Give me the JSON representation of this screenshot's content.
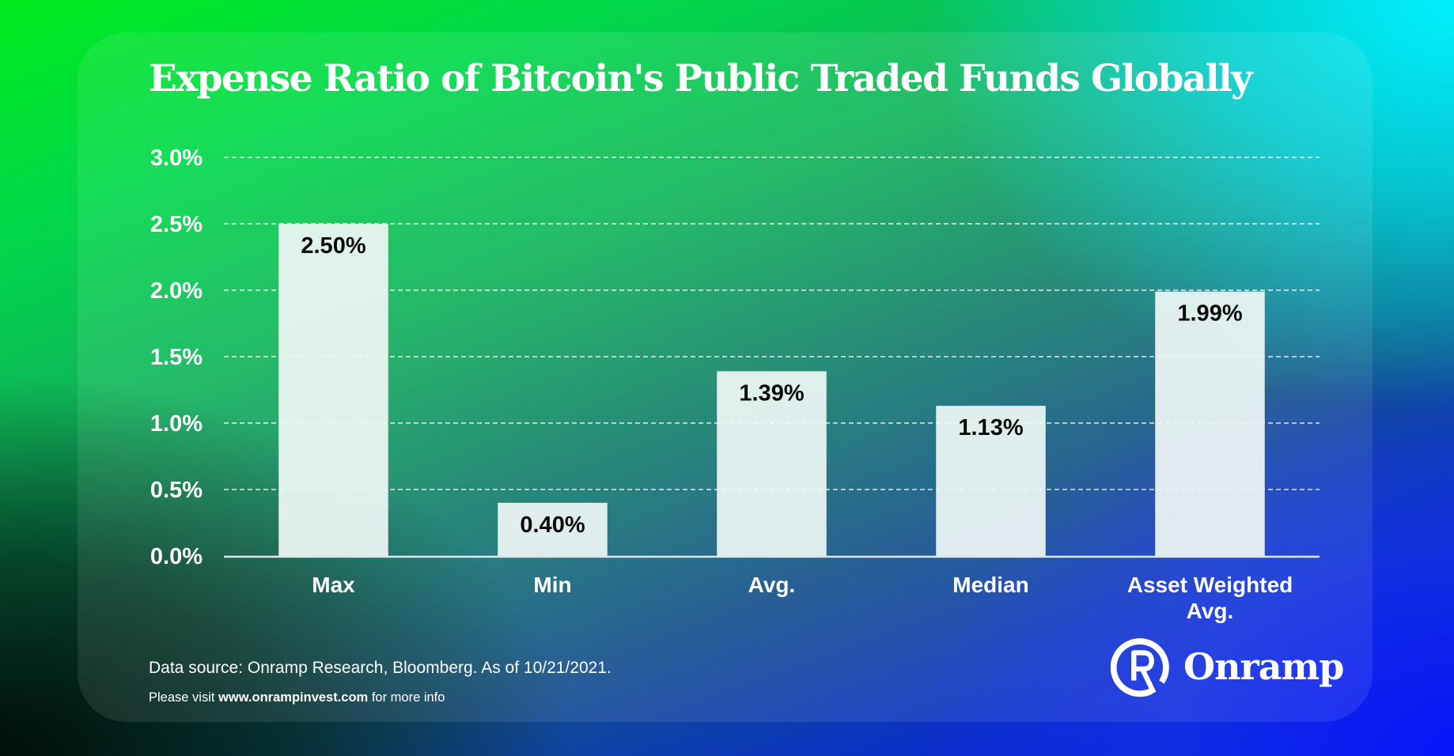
{
  "colors": {
    "bar_fill": "#eef6f4",
    "bar_label": "#0a0a0a",
    "text": "#ffffff",
    "grid": "#ffffff"
  },
  "chart_data": {
    "type": "bar",
    "title": "Expense Ratio of Bitcoin's Public Traded Funds Globally",
    "xlabel": "",
    "ylabel": "",
    "categories": [
      "Max",
      "Min",
      "Avg.",
      "Median",
      "Asset Weighted Avg."
    ],
    "category_lines": [
      [
        "Max"
      ],
      [
        "Min"
      ],
      [
        "Avg."
      ],
      [
        "Median"
      ],
      [
        "Asset Weighted",
        "Avg."
      ]
    ],
    "values": [
      2.5,
      0.4,
      1.39,
      1.13,
      1.99
    ],
    "value_labels": [
      "2.50%",
      "0.40%",
      "1.39%",
      "1.13%",
      "1.99%"
    ],
    "ylim": [
      0,
      3.0
    ],
    "yticks": [
      0,
      0.5,
      1.0,
      1.5,
      2.0,
      2.5,
      3.0
    ],
    "ytick_labels": [
      "0.0%",
      "0.5%",
      "1.0%",
      "1.5%",
      "2.0%",
      "2.5%",
      "3.0%"
    ],
    "grid": true,
    "grid_style": "dashed",
    "legend": "none"
  },
  "footer": {
    "source": "Data source: Onramp Research, Bloomberg. As of 10/21/2021.",
    "visit_prefix": "Please visit ",
    "visit_url": "www.onrampinvest.com",
    "visit_suffix": " for more info"
  },
  "brand": {
    "logo_icon": "onramp-r-circle-icon",
    "name": "Onramp"
  }
}
